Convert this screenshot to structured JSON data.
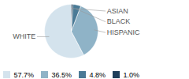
{
  "chart_data": {
    "type": "pie",
    "categories": [
      "WHITE",
      "HISPANIC",
      "BLACK",
      "ASIAN"
    ],
    "values": [
      57.7,
      36.5,
      4.8,
      1.0
    ],
    "value_labels": [
      "57.7%",
      "36.5%",
      "4.8%",
      "1.0%"
    ],
    "colors": [
      "#d4e3ed",
      "#8fb3c7",
      "#4a7a96",
      "#1e3f5a"
    ],
    "legend": "lower left"
  }
}
